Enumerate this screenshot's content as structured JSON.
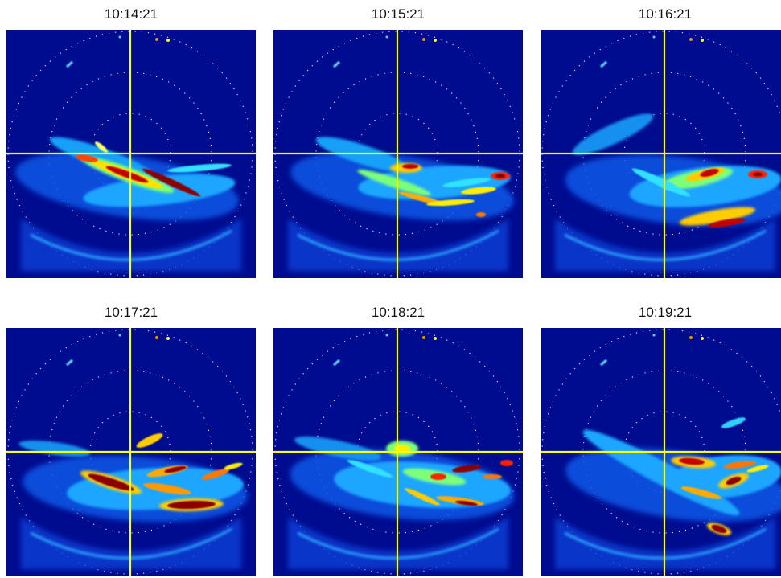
{
  "colors": {
    "background": "#000c8f",
    "crosshair": "#ffff00",
    "range_ring": "#ffffff"
  },
  "panels": [
    {
      "time": "10:14:21"
    },
    {
      "time": "10:15:21"
    },
    {
      "time": "10:16:21"
    },
    {
      "time": "10:17:21"
    },
    {
      "time": "10:18:21"
    },
    {
      "time": "10:19:21"
    }
  ]
}
